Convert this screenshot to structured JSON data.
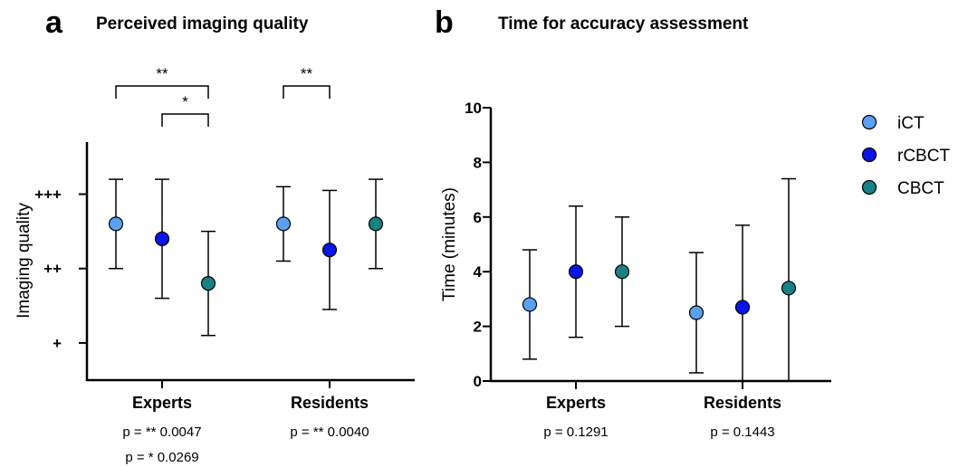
{
  "colors": {
    "iCT": "#5aa1ef",
    "rCBCT": "#0a14e6",
    "CBCT": "#178186",
    "axis": "#000000"
  },
  "chart_data": [
    {
      "panel": "a",
      "type": "scatter",
      "title": "Perceived imaging quality",
      "ylabel": "Imaging quality",
      "xlabel": "",
      "ylim": [
        0.5,
        3.7
      ],
      "yticks": [
        {
          "value": 1,
          "label": "+"
        },
        {
          "value": 2,
          "label": "++"
        },
        {
          "value": 3,
          "label": "+++"
        }
      ],
      "categories": [
        "Experts",
        "Residents"
      ],
      "series": [
        {
          "name": "iCT",
          "points": [
            {
              "category": "Experts",
              "mean": 2.6,
              "low": 2.0,
              "high": 3.2
            },
            {
              "category": "Residents",
              "mean": 2.6,
              "low": 2.1,
              "high": 3.1
            }
          ]
        },
        {
          "name": "rCBCT",
          "points": [
            {
              "category": "Experts",
              "mean": 2.4,
              "low": 1.6,
              "high": 3.2
            },
            {
              "category": "Residents",
              "mean": 2.25,
              "low": 1.45,
              "high": 3.05
            }
          ]
        },
        {
          "name": "CBCT",
          "points": [
            {
              "category": "Experts",
              "mean": 1.8,
              "low": 1.1,
              "high": 2.5
            },
            {
              "category": "Residents",
              "mean": 2.6,
              "low": 2.0,
              "high": 3.2
            }
          ]
        }
      ],
      "significance": [
        {
          "category": "Experts",
          "from": "iCT",
          "to": "CBCT",
          "label": "**",
          "level": 0
        },
        {
          "category": "Experts",
          "from": "rCBCT",
          "to": "CBCT",
          "label": "*",
          "level": 1
        },
        {
          "category": "Residents",
          "from": "iCT",
          "to": "rCBCT",
          "label": "**",
          "level": 0
        }
      ],
      "pvalues": [
        {
          "category": "Experts",
          "lines": [
            "p = ** 0.0047",
            "p = * 0.0269"
          ]
        },
        {
          "category": "Residents",
          "lines": [
            "p = ** 0.0040"
          ]
        }
      ]
    },
    {
      "panel": "b",
      "type": "scatter",
      "title": "Time for accuracy assessment",
      "ylabel": "Time (minutes)",
      "xlabel": "",
      "ylim": [
        0,
        10
      ],
      "yticks": [
        {
          "value": 0,
          "label": "0"
        },
        {
          "value": 2,
          "label": "2"
        },
        {
          "value": 4,
          "label": "4"
        },
        {
          "value": 6,
          "label": "6"
        },
        {
          "value": 8,
          "label": "8"
        },
        {
          "value": 10,
          "label": "10"
        }
      ],
      "categories": [
        "Experts",
        "Residents"
      ],
      "series": [
        {
          "name": "iCT",
          "points": [
            {
              "category": "Experts",
              "mean": 2.8,
              "low": 0.8,
              "high": 4.8
            },
            {
              "category": "Residents",
              "mean": 2.5,
              "low": 0.3,
              "high": 4.7
            }
          ]
        },
        {
          "name": "rCBCT",
          "points": [
            {
              "category": "Experts",
              "mean": 4.0,
              "low": 1.6,
              "high": 6.4
            },
            {
              "category": "Residents",
              "mean": 2.7,
              "low": 0.0,
              "high": 5.7
            }
          ]
        },
        {
          "name": "CBCT",
          "points": [
            {
              "category": "Experts",
              "mean": 4.0,
              "low": 2.0,
              "high": 6.0
            },
            {
              "category": "Residents",
              "mean": 3.4,
              "low": 0.0,
              "high": 7.4
            }
          ]
        }
      ],
      "pvalues": [
        {
          "category": "Experts",
          "lines": [
            "p = 0.1291"
          ]
        },
        {
          "category": "Residents",
          "lines": [
            "p = 0.1443"
          ]
        }
      ]
    }
  ],
  "legend": {
    "placement": "right",
    "items": [
      {
        "name": "iCT",
        "color": "#5aa1ef"
      },
      {
        "name": "rCBCT",
        "color": "#0a14e6"
      },
      {
        "name": "CBCT",
        "color": "#178186"
      }
    ]
  }
}
